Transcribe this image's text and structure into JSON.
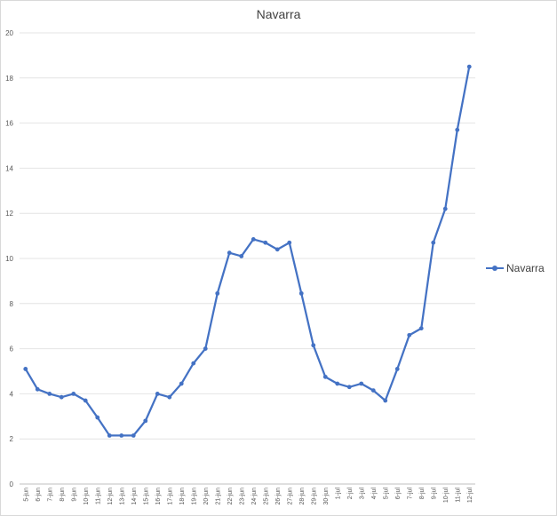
{
  "chart_data": {
    "type": "line",
    "title": "Navarra",
    "xlabel": "",
    "ylabel": "",
    "ylim": [
      0,
      20
    ],
    "ytick_step": 2,
    "grid": true,
    "legend_position": "right",
    "categories": [
      "5-jun",
      "6-jun",
      "7-jun",
      "8-jun",
      "9-jun",
      "10-jun",
      "11-jun",
      "12-jun",
      "13-jun",
      "14-jun",
      "15-jun",
      "16-jun",
      "17-jun",
      "18-jun",
      "19-jun",
      "20-jun",
      "21-jun",
      "22-jun",
      "23-jun",
      "24-jun",
      "25-jun",
      "26-jun",
      "27-jun",
      "28-jun",
      "29-jun",
      "30-jun",
      "1-jul",
      "2-jul",
      "3-jul",
      "4-jul",
      "5-jul",
      "6-jul",
      "7-jul",
      "8-jul",
      "9-jul",
      "10-jul",
      "11-jul",
      "12-jul"
    ],
    "series": [
      {
        "name": "Navarra",
        "color": "#4472c4",
        "values": [
          5.1,
          4.2,
          4.0,
          3.85,
          4.0,
          3.7,
          2.95,
          2.15,
          2.15,
          2.15,
          2.8,
          4.0,
          3.85,
          4.45,
          5.35,
          6.0,
          8.45,
          10.25,
          10.1,
          10.85,
          10.7,
          10.4,
          10.7,
          8.45,
          6.15,
          4.75,
          4.45,
          4.3,
          4.45,
          4.15,
          3.7,
          5.1,
          6.6,
          6.9,
          10.7,
          12.2,
          15.7,
          18.5
        ]
      }
    ]
  }
}
